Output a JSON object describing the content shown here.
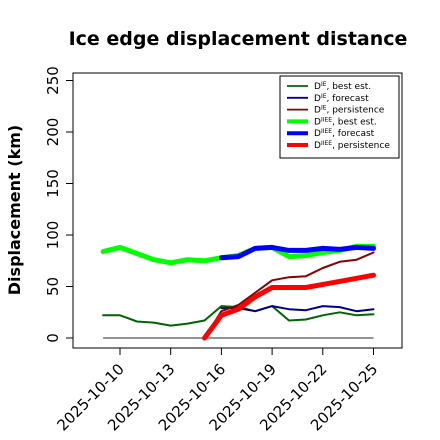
{
  "chart_data": {
    "type": "line",
    "title": "Ice edge displacement distance",
    "xlabel": "",
    "ylabel": "Displacement (km)",
    "ylim": [
      0,
      260
    ],
    "yticks": [
      0,
      50,
      100,
      150,
      200,
      250
    ],
    "xticks": [
      "2025-10-10",
      "2025-10-13",
      "2025-10-16",
      "2025-10-19",
      "2025-10-22",
      "2025-10-25"
    ],
    "highlight_tick": "2025-10-16",
    "highlight_color": "#2e8b2e",
    "grid": false,
    "legend_position": "top-right",
    "x": [
      "2025-10-09",
      "2025-10-10",
      "2025-10-11",
      "2025-10-12",
      "2025-10-13",
      "2025-10-14",
      "2025-10-15",
      "2025-10-16",
      "2025-10-17",
      "2025-10-18",
      "2025-10-19",
      "2025-10-20",
      "2025-10-21",
      "2025-10-22",
      "2025-10-23",
      "2025-10-24",
      "2025-10-25"
    ],
    "series": [
      {
        "name": "D^IE, best est.",
        "label_main": "D",
        "label_sup": "IE",
        "label_rest": ", best est.",
        "color": "#006400",
        "width": 2,
        "values": [
          22,
          22,
          16,
          15,
          12,
          14,
          17,
          31,
          30,
          26,
          31,
          17,
          18,
          22,
          25,
          22,
          23
        ]
      },
      {
        "name": "D^IE, forecast",
        "label_main": "D",
        "label_sup": "IE",
        "label_rest": ", forecast",
        "color": "#00008b",
        "width": 2,
        "values": [
          null,
          null,
          null,
          null,
          null,
          null,
          null,
          29,
          29,
          26,
          31,
          28,
          27,
          31,
          30,
          26,
          28
        ]
      },
      {
        "name": "D^IE, persistence",
        "label_main": "D",
        "label_sup": "IE",
        "label_rest": ", persistence",
        "color": "#8b0000",
        "width": 2,
        "values": [
          null,
          null,
          null,
          null,
          null,
          null,
          0,
          26,
          32,
          44,
          56,
          59,
          60,
          68,
          74,
          76,
          83
        ]
      },
      {
        "name": "D^IIEE, best est.",
        "label_main": "D",
        "label_sup": "IIEE",
        "label_rest": ", best est.",
        "color": "#00ff00",
        "width": 5,
        "values": [
          84,
          88,
          82,
          76,
          73,
          76,
          75,
          78,
          80,
          87,
          88,
          79,
          80,
          83,
          85,
          89,
          89
        ]
      },
      {
        "name": "D^IIEE, forecast",
        "label_main": "D",
        "label_sup": "IIEE",
        "label_rest": ", forecast",
        "color": "#0000ff",
        "width": 5,
        "values": [
          null,
          null,
          null,
          null,
          null,
          null,
          null,
          78,
          79,
          87,
          88,
          85,
          85,
          87,
          86,
          88,
          87
        ]
      },
      {
        "name": "D^IIEE, persistence",
        "label_main": "D",
        "label_sup": "IIEE",
        "label_rest": ", persistence",
        "color": "#ff0000",
        "width": 5,
        "values": [
          null,
          null,
          null,
          null,
          null,
          null,
          0,
          22,
          28,
          40,
          49,
          49,
          49,
          52,
          55,
          58,
          61
        ]
      }
    ],
    "baseline": {
      "color": "#555555",
      "value": 0,
      "x_start": "2025-10-09",
      "x_end": "2025-10-25"
    }
  }
}
